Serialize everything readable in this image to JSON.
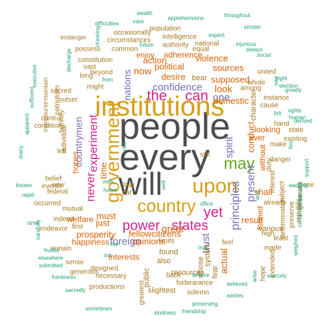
{
  "palette": {
    "gray": "#4D4D4D",
    "gold": "#D4A017",
    "magenta": "#D3218E",
    "purple": "#7570B3",
    "orange": "#D95F02",
    "teal": "#1B9E77",
    "green": "#66A61E",
    "brown": "#A6761D"
  },
  "words": [
    {
      "text": "people",
      "color": "gray",
      "weight": 10
    },
    {
      "text": "every",
      "color": "gray",
      "weight": 10
    },
    {
      "text": "institutions",
      "color": "gold",
      "weight": 9
    },
    {
      "text": "will",
      "color": "gray",
      "weight": 9
    },
    {
      "text": "government",
      "color": "gold",
      "weight": 8
    },
    {
      "text": "country",
      "color": "gold",
      "weight": 7
    },
    {
      "text": "upon",
      "color": "gold",
      "weight": 7
    },
    {
      "text": "the",
      "color": "magenta",
      "weight": 6
    },
    {
      "text": "can",
      "color": "magenta",
      "weight": 6
    },
    {
      "text": "may",
      "color": "green",
      "weight": 6
    },
    {
      "text": "yet",
      "color": "magenta",
      "weight": 5
    },
    {
      "text": "power",
      "color": "magenta",
      "weight": 5
    },
    {
      "text": "states",
      "color": "magenta",
      "weight": 5
    },
    {
      "text": "experiment",
      "color": "magenta",
      "weight": 5
    },
    {
      "text": "never",
      "color": "magenta",
      "weight": 5
    },
    {
      "text": "confidence",
      "color": "purple",
      "weight": 4
    },
    {
      "text": "present",
      "color": "purple",
      "weight": 4
    },
    {
      "text": "principles",
      "color": "purple",
      "weight": 4
    },
    {
      "text": "spirit",
      "color": "purple",
      "weight": 4
    },
    {
      "text": "trust",
      "color": "purple",
      "weight": 4
    },
    {
      "text": "nations",
      "color": "purple",
      "weight": 4
    },
    {
      "text": "foreign",
      "color": "purple",
      "weight": 4
    },
    {
      "text": "one",
      "color": "purple",
      "weight": 4
    },
    {
      "text": "countrymen",
      "color": "purple",
      "weight": 4
    },
    {
      "text": "look",
      "color": "orange",
      "weight": 3
    },
    {
      "text": "supposed",
      "color": "orange",
      "weight": 3
    },
    {
      "text": "political",
      "color": "orange",
      "weight": 3
    },
    {
      "text": "desire",
      "color": "orange",
      "weight": 3
    },
    {
      "text": "domestic",
      "color": "orange",
      "weight": 3
    },
    {
      "text": "great",
      "color": "orange",
      "weight": 3
    },
    {
      "text": "conduct",
      "color": "orange",
      "weight": 3
    },
    {
      "text": "actual",
      "color": "orange",
      "weight": 3
    },
    {
      "text": "fellowcitizens",
      "color": "orange",
      "weight": 3
    },
    {
      "text": "prosperity",
      "color": "orange",
      "weight": 3
    },
    {
      "text": "opinions",
      "color": "orange",
      "weight": 3
    },
    {
      "text": "result",
      "color": "orange",
      "weight": 3
    },
    {
      "text": "now",
      "color": "orange",
      "weight": 3
    },
    {
      "text": "must",
      "color": "orange",
      "weight": 3
    },
    {
      "text": "just",
      "color": "orange",
      "weight": 3
    },
    {
      "text": "welfare",
      "color": "orange",
      "weight": 3
    },
    {
      "text": "time",
      "color": "orange",
      "weight": 3
    },
    {
      "text": "hopes",
      "color": "orange",
      "weight": 3
    },
    {
      "text": "action",
      "color": "orange",
      "weight": 3
    },
    {
      "text": "violence",
      "color": "orange",
      "weight": 3
    },
    {
      "text": "sources",
      "color": "orange",
      "weight": 3
    },
    {
      "text": "shall",
      "color": "orange",
      "weight": 3
    },
    {
      "text": "without",
      "color": "orange",
      "weight": 3
    },
    {
      "text": "ever",
      "color": "orange",
      "weight": 3
    },
    {
      "text": "looking",
      "color": "orange",
      "weight": 3
    },
    {
      "text": "happiness",
      "color": "orange",
      "weight": 3
    },
    {
      "text": "interests",
      "color": "orange",
      "weight": 3
    },
    {
      "text": "formed",
      "color": "orange",
      "weight": 3
    },
    {
      "text": "adherence",
      "color": "orange",
      "weight": 3
    },
    {
      "text": "enjoy",
      "color": "orange",
      "weight": 2
    },
    {
      "text": "character",
      "color": "brown",
      "weight": 2
    },
    {
      "text": "whole",
      "color": "brown",
      "weight": 2
    },
    {
      "text": "united",
      "color": "brown",
      "weight": 2
    },
    {
      "text": "cause",
      "color": "brown",
      "weight": 2
    },
    {
      "text": "duty",
      "color": "brown",
      "weight": 2
    },
    {
      "text": "interest",
      "color": "brown",
      "weight": 2
    },
    {
      "text": "already",
      "color": "brown",
      "weight": 2
    },
    {
      "text": "various",
      "color": "brown",
      "weight": 2
    },
    {
      "text": "fear",
      "color": "brown",
      "weight": 2
    },
    {
      "text": "whose",
      "color": "brown",
      "weight": 2
    },
    {
      "text": "system",
      "color": "brown",
      "weight": 2
    },
    {
      "text": "feel",
      "color": "brown",
      "weight": 2
    },
    {
      "text": "limits",
      "color": "brown",
      "weight": 2
    },
    {
      "text": "found",
      "color": "brown",
      "weight": 2
    },
    {
      "text": "also",
      "color": "brown",
      "weight": 2
    },
    {
      "text": "public",
      "color": "brown",
      "weight": 2
    },
    {
      "text": "resources",
      "color": "brown",
      "weight": 2
    },
    {
      "text": "slightest",
      "color": "brown",
      "weight": 2
    },
    {
      "text": "forbearance",
      "color": "brown",
      "weight": 2
    },
    {
      "text": "solemn",
      "color": "brown",
      "weight": 2
    },
    {
      "text": "necessary",
      "color": "brown",
      "weight": 2
    },
    {
      "text": "productions",
      "color": "brown",
      "weight": 2
    },
    {
      "text": "designed",
      "color": "brown",
      "weight": 2
    },
    {
      "text": "sense",
      "color": "brown",
      "weight": 2
    },
    {
      "text": "generous",
      "color": "brown",
      "weight": 2
    },
    {
      "text": "remain",
      "color": "brown",
      "weight": 2
    },
    {
      "text": "indeed",
      "color": "brown",
      "weight": 2
    },
    {
      "text": "mutual",
      "color": "brown",
      "weight": 2
    },
    {
      "text": "federal",
      "color": "brown",
      "weight": 2
    },
    {
      "text": "new",
      "color": "brown",
      "weight": 2
    },
    {
      "text": "individual",
      "color": "brown",
      "weight": 2
    },
    {
      "text": "might",
      "color": "brown",
      "weight": 2
    },
    {
      "text": "beyond",
      "color": "brown",
      "weight": 2
    },
    {
      "text": "possess",
      "color": "brown",
      "weight": 2
    },
    {
      "text": "population",
      "color": "brown",
      "weight": 2
    },
    {
      "text": "authority",
      "color": "brown",
      "weight": 2
    },
    {
      "text": "national",
      "color": "brown",
      "weight": 2
    },
    {
      "text": "intelligence",
      "color": "brown",
      "weight": 2
    },
    {
      "text": "occasionally",
      "color": "brown",
      "weight": 2
    },
    {
      "text": "circumstances",
      "color": "brown",
      "weight": 2
    },
    {
      "text": "constitution",
      "color": "brown",
      "weight": 2
    },
    {
      "text": "patriotism",
      "color": "brown",
      "weight": 2
    },
    {
      "text": "endeavor",
      "color": "brown",
      "weight": 2
    },
    {
      "text": "first",
      "color": "brown",
      "weight": 2
    },
    {
      "text": "made",
      "color": "brown",
      "weight": 2
    },
    {
      "text": "hope",
      "color": "brown",
      "weight": 2
    },
    {
      "text": "extended",
      "color": "brown",
      "weight": 2
    },
    {
      "text": "least",
      "color": "brown",
      "weight": 2
    },
    {
      "text": "subject",
      "color": "brown",
      "weight": 2
    },
    {
      "text": "determination",
      "color": "brown",
      "weight": 2
    },
    {
      "text": "preserve",
      "color": "brown",
      "weight": 2
    },
    {
      "text": "general",
      "color": "brown",
      "weight": 2
    },
    {
      "text": "republic",
      "color": "brown",
      "weight": 2
    },
    {
      "text": "these",
      "color": "brown",
      "weight": 2
    },
    {
      "text": "danger",
      "color": "brown",
      "weight": 2
    },
    {
      "text": "make",
      "color": "brown",
      "weight": 2
    },
    {
      "text": "existing",
      "color": "brown",
      "weight": 2
    },
    {
      "text": "state",
      "color": "brown",
      "weight": 2
    },
    {
      "text": "hand",
      "color": "brown",
      "weight": 2
    },
    {
      "text": "instance",
      "color": "brown",
      "weight": 2
    },
    {
      "text": "among",
      "color": "brown",
      "weight": 2
    },
    {
      "text": "equal",
      "color": "brown",
      "weight": 2
    },
    {
      "text": "common",
      "color": "brown",
      "weight": 2
    },
    {
      "text": "vast",
      "color": "brown",
      "weight": 2
    },
    {
      "text": "long",
      "color": "brown",
      "weight": 2
    },
    {
      "text": "left",
      "color": "brown",
      "weight": 2
    },
    {
      "text": "belief",
      "color": "brown",
      "weight": 2
    },
    {
      "text": "events",
      "color": "brown",
      "weight": 2
    },
    {
      "text": "occurred",
      "color": "brown",
      "weight": 2
    },
    {
      "text": "control",
      "color": "brown",
      "weight": 2
    },
    {
      "text": "condition",
      "color": "brown",
      "weight": 2
    },
    {
      "text": "sacred",
      "color": "brown",
      "weight": 2
    },
    {
      "text": "outset",
      "color": "brown",
      "weight": 2
    },
    {
      "text": "faithfully",
      "color": "brown",
      "weight": 2
    },
    {
      "text": "intercourse",
      "color": "brown",
      "weight": 2
    },
    {
      "text": "maintain",
      "color": "brown",
      "weight": 2
    },
    {
      "text": "endanger",
      "color": "brown",
      "weight": 2
    },
    {
      "text": "greatest",
      "color": "brown",
      "weight": 2
    },
    {
      "text": "back",
      "color": "brown",
      "weight": 2
    },
    {
      "text": "still",
      "color": "brown",
      "weight": 2
    },
    {
      "text": "law",
      "color": "brown",
      "weight": 2
    },
    {
      "text": "far",
      "color": "brown",
      "weight": 2
    },
    {
      "text": "bear",
      "color": "brown",
      "weight": 2
    },
    {
      "text": "high",
      "color": "brown",
      "weight": 2
    },
    {
      "text": "wealth",
      "color": "teal",
      "weight": 1
    },
    {
      "text": "apprehensions",
      "color": "teal",
      "weight": 1
    },
    {
      "text": "throughout",
      "color": "teal",
      "weight": 1
    },
    {
      "text": "difficulties",
      "color": "teal",
      "weight": 1
    },
    {
      "text": "valor",
      "color": "teal",
      "weight": 1
    },
    {
      "text": "expect",
      "color": "teal",
      "weight": 1
    },
    {
      "text": "sinister",
      "color": "teal",
      "weight": 1
    },
    {
      "text": "cheering",
      "color": "teal",
      "weight": 1
    },
    {
      "text": "future",
      "color": "teal",
      "weight": 1
    },
    {
      "text": "injurious",
      "color": "teal",
      "weight": 1
    },
    {
      "text": "always",
      "color": "teal",
      "weight": 1
    },
    {
      "text": "social",
      "color": "teal",
      "weight": 1
    },
    {
      "text": "discharge",
      "color": "teal",
      "weight": 1
    },
    {
      "text": "right",
      "color": "teal",
      "weight": 1
    },
    {
      "text": "election",
      "color": "teal",
      "weight": 1
    },
    {
      "text": "greatly",
      "color": "teal",
      "weight": 1
    },
    {
      "text": "rights",
      "color": "teal",
      "weight": 1
    },
    {
      "text": "human",
      "color": "teal",
      "weight": 1
    },
    {
      "text": "derived",
      "color": "teal",
      "weight": 1
    },
    {
      "text": "firm",
      "color": "teal",
      "weight": 1
    },
    {
      "text": "support",
      "color": "teal",
      "weight": 1
    },
    {
      "text": "benefits",
      "color": "teal",
      "weight": 1
    },
    {
      "text": "wanting",
      "color": "teal",
      "weight": 1
    },
    {
      "text": "circumstance",
      "color": "teal",
      "weight": 1
    },
    {
      "text": "weighed",
      "color": "teal",
      "weight": 1
    },
    {
      "text": "scarcely",
      "color": "teal",
      "weight": 1
    },
    {
      "text": "arise",
      "color": "teal",
      "weight": 1
    },
    {
      "text": "believed",
      "color": "teal",
      "weight": 1
    },
    {
      "text": "wishes",
      "color": "teal",
      "weight": 1
    },
    {
      "text": "believe",
      "color": "teal",
      "weight": 1
    },
    {
      "text": "preserving",
      "color": "teal",
      "weight": 1
    },
    {
      "text": "friendship",
      "color": "teal",
      "weight": 1
    },
    {
      "text": "kindness",
      "color": "teal",
      "weight": 1
    },
    {
      "text": "sometimes",
      "color": "teal",
      "weight": 1
    },
    {
      "text": "sacredly",
      "color": "teal",
      "weight": 1
    },
    {
      "text": "frankness",
      "color": "teal",
      "weight": 1
    },
    {
      "text": "submitted",
      "color": "teal",
      "weight": 1
    },
    {
      "text": "elsewhere",
      "color": "teal",
      "weight": 1
    },
    {
      "text": "fruitful",
      "color": "teal",
      "weight": 1
    },
    {
      "text": "carefully",
      "color": "teal",
      "weight": 1
    },
    {
      "text": "strict",
      "color": "teal",
      "weight": 1
    },
    {
      "text": "known",
      "color": "teal",
      "weight": 1
    },
    {
      "text": "rapid",
      "color": "teal",
      "weight": 1
    },
    {
      "text": "many",
      "color": "teal",
      "weight": 1
    },
    {
      "text": "apparent",
      "color": "teal",
      "weight": 1
    },
    {
      "text": "sufficient",
      "color": "teal",
      "weight": 1
    },
    {
      "text": "executive",
      "color": "teal",
      "weight": 1
    },
    {
      "text": "from",
      "color": "teal",
      "weight": 1
    },
    {
      "text": "civil",
      "color": "teal",
      "weight": 1
    },
    {
      "text": "live",
      "color": "teal",
      "weight": 1
    },
    {
      "text": "men",
      "color": "teal",
      "weight": 1
    },
    {
      "text": "home",
      "color": "teal",
      "weight": 1
    },
    {
      "text": "well",
      "color": "teal",
      "weight": 1
    },
    {
      "text": "office",
      "color": "teal",
      "weight": 1
    },
    {
      "text": "true",
      "color": "teal",
      "weight": 1
    },
    {
      "text": "our",
      "color": "teal",
      "weight": 1
    },
    {
      "text": "and",
      "color": "teal",
      "weight": 1
    },
    {
      "text": "felt",
      "color": "teal",
      "weight": 1
    },
    {
      "text": "saw",
      "color": "teal",
      "weight": 1
    }
  ]
}
